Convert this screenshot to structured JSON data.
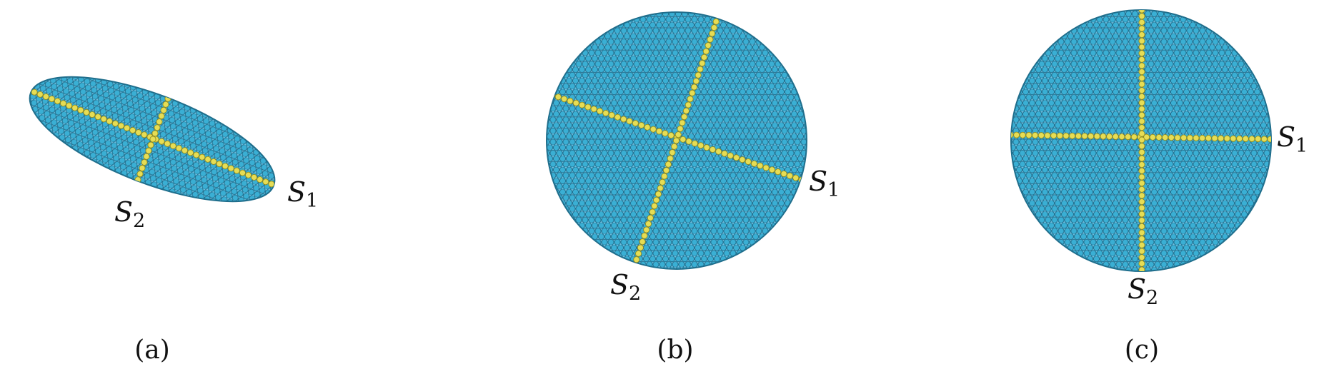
{
  "colors": {
    "particle_fill": "#3AAFD4",
    "particle_stroke": "#1F6E8C",
    "axis_particle_fill": "#E6DD55",
    "axis_particle_stroke": "#8E8A20",
    "text": "#111111"
  },
  "panels": [
    {
      "id": "a",
      "caption": "(a)",
      "s1": {
        "base": "S",
        "sub": "1"
      },
      "s2": {
        "base": "S",
        "sub": "2"
      }
    },
    {
      "id": "b",
      "caption": "(b)",
      "s1": {
        "base": "S",
        "sub": "1"
      },
      "s2": {
        "base": "S",
        "sub": "2"
      }
    },
    {
      "id": "c",
      "caption": "(c)",
      "s1": {
        "base": "S",
        "sub": "1"
      },
      "s2": {
        "base": "S",
        "sub": "2"
      }
    }
  ]
}
